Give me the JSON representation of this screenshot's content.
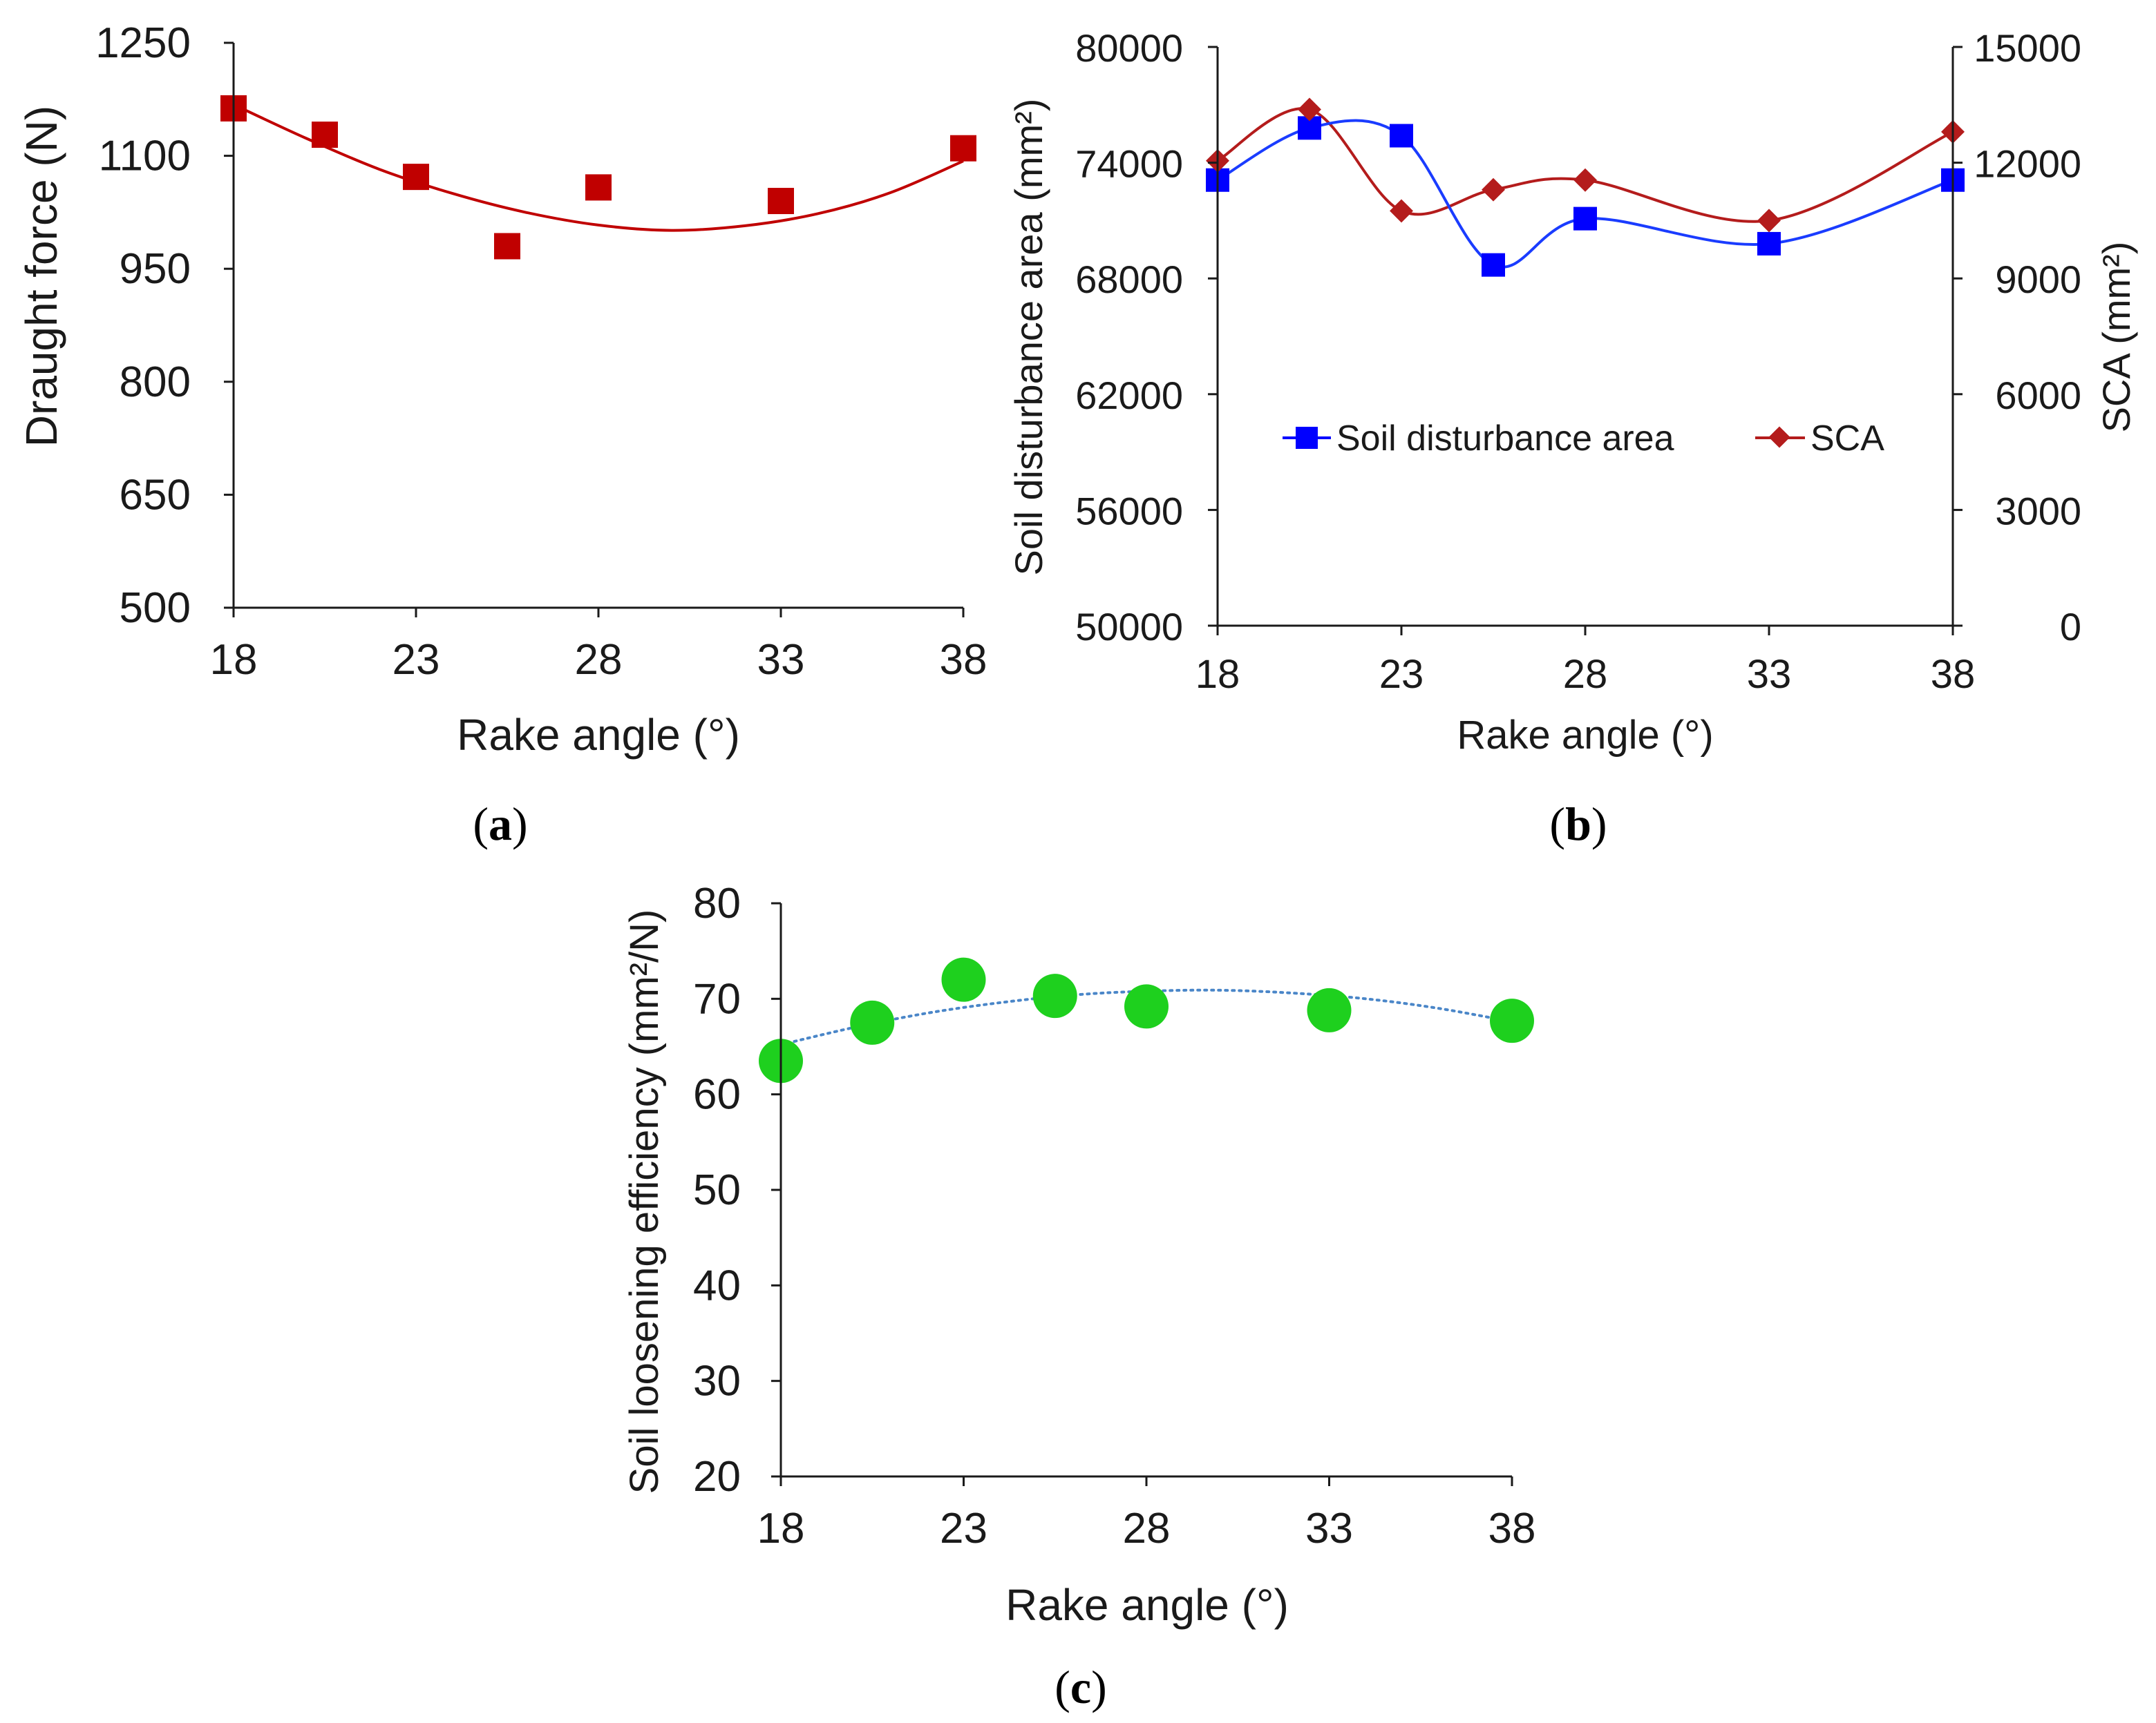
{
  "colors": {
    "red": "#c00000",
    "dark_red": "#b41c1c",
    "blue": "#0000ff",
    "blue_line": "#1a3cff",
    "green": "#1ed01e",
    "dotted": "#4a86c8"
  },
  "chart_data": [
    {
      "id": "a",
      "type": "scatter",
      "caption": "a",
      "xlabel": "Rake angle (°)",
      "ylabel": "Draught force (N)",
      "xlim": [
        18,
        38
      ],
      "ylim": [
        500,
        1250
      ],
      "xticks": [
        "18",
        "23",
        "28",
        "33",
        "38"
      ],
      "yticks": [
        "500",
        "650",
        "800",
        "950",
        "1100",
        "1250"
      ],
      "series": [
        {
          "name": "Draught force",
          "x": [
            18,
            20.5,
            23,
            25.5,
            28,
            33,
            38
          ],
          "y": [
            1163,
            1128,
            1072,
            980,
            1058,
            1040,
            1110
          ],
          "trendline": "polynomial",
          "trend": [
            [
              18,
              1168
            ],
            [
              20,
              1123
            ],
            [
              22,
              1082
            ],
            [
              24,
              1050
            ],
            [
              26,
              1025
            ],
            [
              28,
              1008
            ],
            [
              30,
              1001
            ],
            [
              32,
              1007
            ],
            [
              34,
              1023
            ],
            [
              36,
              1051
            ],
            [
              38,
              1093
            ]
          ]
        }
      ]
    },
    {
      "id": "b",
      "type": "line",
      "caption": "b",
      "xlabel": "Rake angle (°)",
      "ylabel": "Soil disturbance area (mm²)",
      "y2label": "SCA (mm²)",
      "xlim": [
        18,
        38
      ],
      "ylim": [
        50000,
        80000
      ],
      "y2lim": [
        0,
        15000
      ],
      "xticks": [
        "18",
        "23",
        "28",
        "33",
        "38"
      ],
      "yticks": [
        "50000",
        "56000",
        "62000",
        "68000",
        "74000",
        "80000"
      ],
      "y2ticks": [
        "0",
        "3000",
        "6000",
        "9000",
        "12000",
        "15000"
      ],
      "legend_position": "center",
      "series": [
        {
          "name": "Soil disturbance area",
          "axis": "left",
          "x": [
            18,
            20.5,
            23,
            25.5,
            28,
            33,
            38
          ],
          "y": [
            73100,
            75800,
            75400,
            68700,
            71100,
            69800,
            73100
          ]
        },
        {
          "name": "SCA",
          "axis": "right",
          "x": [
            18,
            20.5,
            23,
            25.5,
            28,
            33,
            38
          ],
          "y": [
            12050,
            13380,
            10750,
            11300,
            11550,
            10500,
            12800
          ]
        }
      ]
    },
    {
      "id": "c",
      "type": "scatter",
      "caption": "c",
      "xlabel": "Rake angle (°)",
      "ylabel": "Soil loosening efficiency (mm²/N)",
      "xlim": [
        18,
        38
      ],
      "ylim": [
        20,
        80
      ],
      "xticks": [
        "18",
        "23",
        "28",
        "33",
        "38"
      ],
      "yticks": [
        "20",
        "30",
        "40",
        "50",
        "60",
        "70",
        "80"
      ],
      "series": [
        {
          "name": "Soil loosening efficiency",
          "x": [
            18,
            20.5,
            23,
            25.5,
            28,
            33,
            38
          ],
          "y": [
            63.5,
            67.5,
            72.0,
            70.3,
            69.2,
            68.8,
            67.7
          ],
          "trendline": "polynomial",
          "trend": [
            [
              18,
              65.2
            ],
            [
              20,
              67.0
            ],
            [
              22,
              68.5
            ],
            [
              24,
              69.6
            ],
            [
              26,
              70.4
            ],
            [
              28,
              70.8
            ],
            [
              30,
              70.9
            ],
            [
              32,
              70.6
            ],
            [
              34,
              70.0
            ],
            [
              36,
              69.0
            ],
            [
              38,
              67.6
            ]
          ]
        }
      ]
    }
  ]
}
